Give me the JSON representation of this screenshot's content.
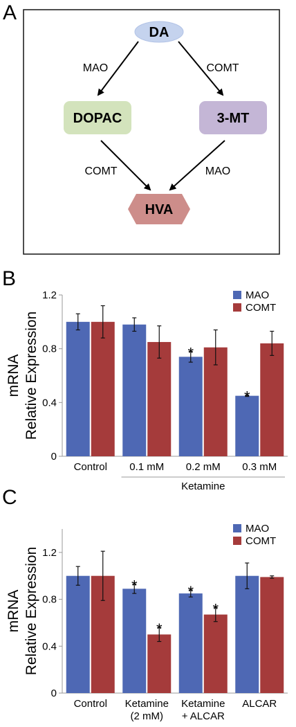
{
  "panel_a": {
    "letter": "A",
    "nodes": {
      "da": "DA",
      "dopac": "DOPAC",
      "mt": "3-MT",
      "hva": "HVA"
    },
    "enzymes": {
      "da_to_dopac": "MAO",
      "da_to_mt": "COMT",
      "dopac_to_hva": "COMT",
      "mt_to_hva": "MAO"
    },
    "colors": {
      "da": "#c5d3ee",
      "dopac": "#d3e3bc",
      "mt": "#c4b6d6",
      "hva": "#cd8d8a"
    }
  },
  "chart_data": [
    {
      "panel": "B",
      "type": "bar",
      "ylabel": "mRNA Relative Expression",
      "ylabel_lines": [
        "mRNA",
        "Relative Expression"
      ],
      "ylim": [
        0,
        1.2
      ],
      "yticks": [
        "0",
        "0.4",
        "0.8",
        "1.2"
      ],
      "categories": [
        "Control",
        "0.1 mM",
        "0.2 mM",
        "0.3 mM"
      ],
      "category_lines": [
        [
          "Control"
        ],
        [
          "0.1 mM"
        ],
        [
          "0.2 mM"
        ],
        [
          "0.3 mM"
        ]
      ],
      "group_label": "Ketamine",
      "group_span": [
        1,
        3
      ],
      "legend_position": "top-right",
      "series": [
        {
          "name": "MAO",
          "color": "#4e68b4",
          "values": [
            1.0,
            0.98,
            0.74,
            0.45
          ],
          "errors": [
            0.06,
            0.05,
            0.04,
            0.005
          ],
          "significant": [
            false,
            false,
            true,
            true
          ]
        },
        {
          "name": "COMT",
          "color": "#a53b3b",
          "values": [
            1.0,
            0.85,
            0.81,
            0.84
          ],
          "errors": [
            0.12,
            0.12,
            0.13,
            0.09
          ],
          "significant": [
            false,
            false,
            false,
            false
          ]
        }
      ],
      "star": "*"
    },
    {
      "panel": "C",
      "type": "bar",
      "ylabel": "mRNA Relative Expression",
      "ylabel_lines": [
        "mRNA",
        "Relative Expression"
      ],
      "ylim": [
        0,
        1.4
      ],
      "yticks": [
        "0",
        "0.4",
        "0.8",
        "1.2"
      ],
      "categories": [
        "Control",
        "Ketamine (2 mM)",
        "Ketamine + ALCAR",
        "ALCAR"
      ],
      "category_lines": [
        [
          "Control"
        ],
        [
          "Ketamine",
          "(2 mM)"
        ],
        [
          "Ketamine",
          "+ ALCAR"
        ],
        [
          "ALCAR"
        ]
      ],
      "legend_position": "top-right",
      "series": [
        {
          "name": "MAO",
          "color": "#4e68b4",
          "values": [
            1.0,
            0.89,
            0.85,
            1.0
          ],
          "errors": [
            0.08,
            0.04,
            0.03,
            0.11
          ],
          "significant": [
            false,
            true,
            true,
            false
          ]
        },
        {
          "name": "COMT",
          "color": "#a53b3b",
          "values": [
            1.0,
            0.5,
            0.67,
            0.99
          ],
          "errors": [
            0.21,
            0.06,
            0.06,
            0.01
          ],
          "significant": [
            false,
            true,
            true,
            false
          ]
        }
      ],
      "star": "*"
    }
  ]
}
